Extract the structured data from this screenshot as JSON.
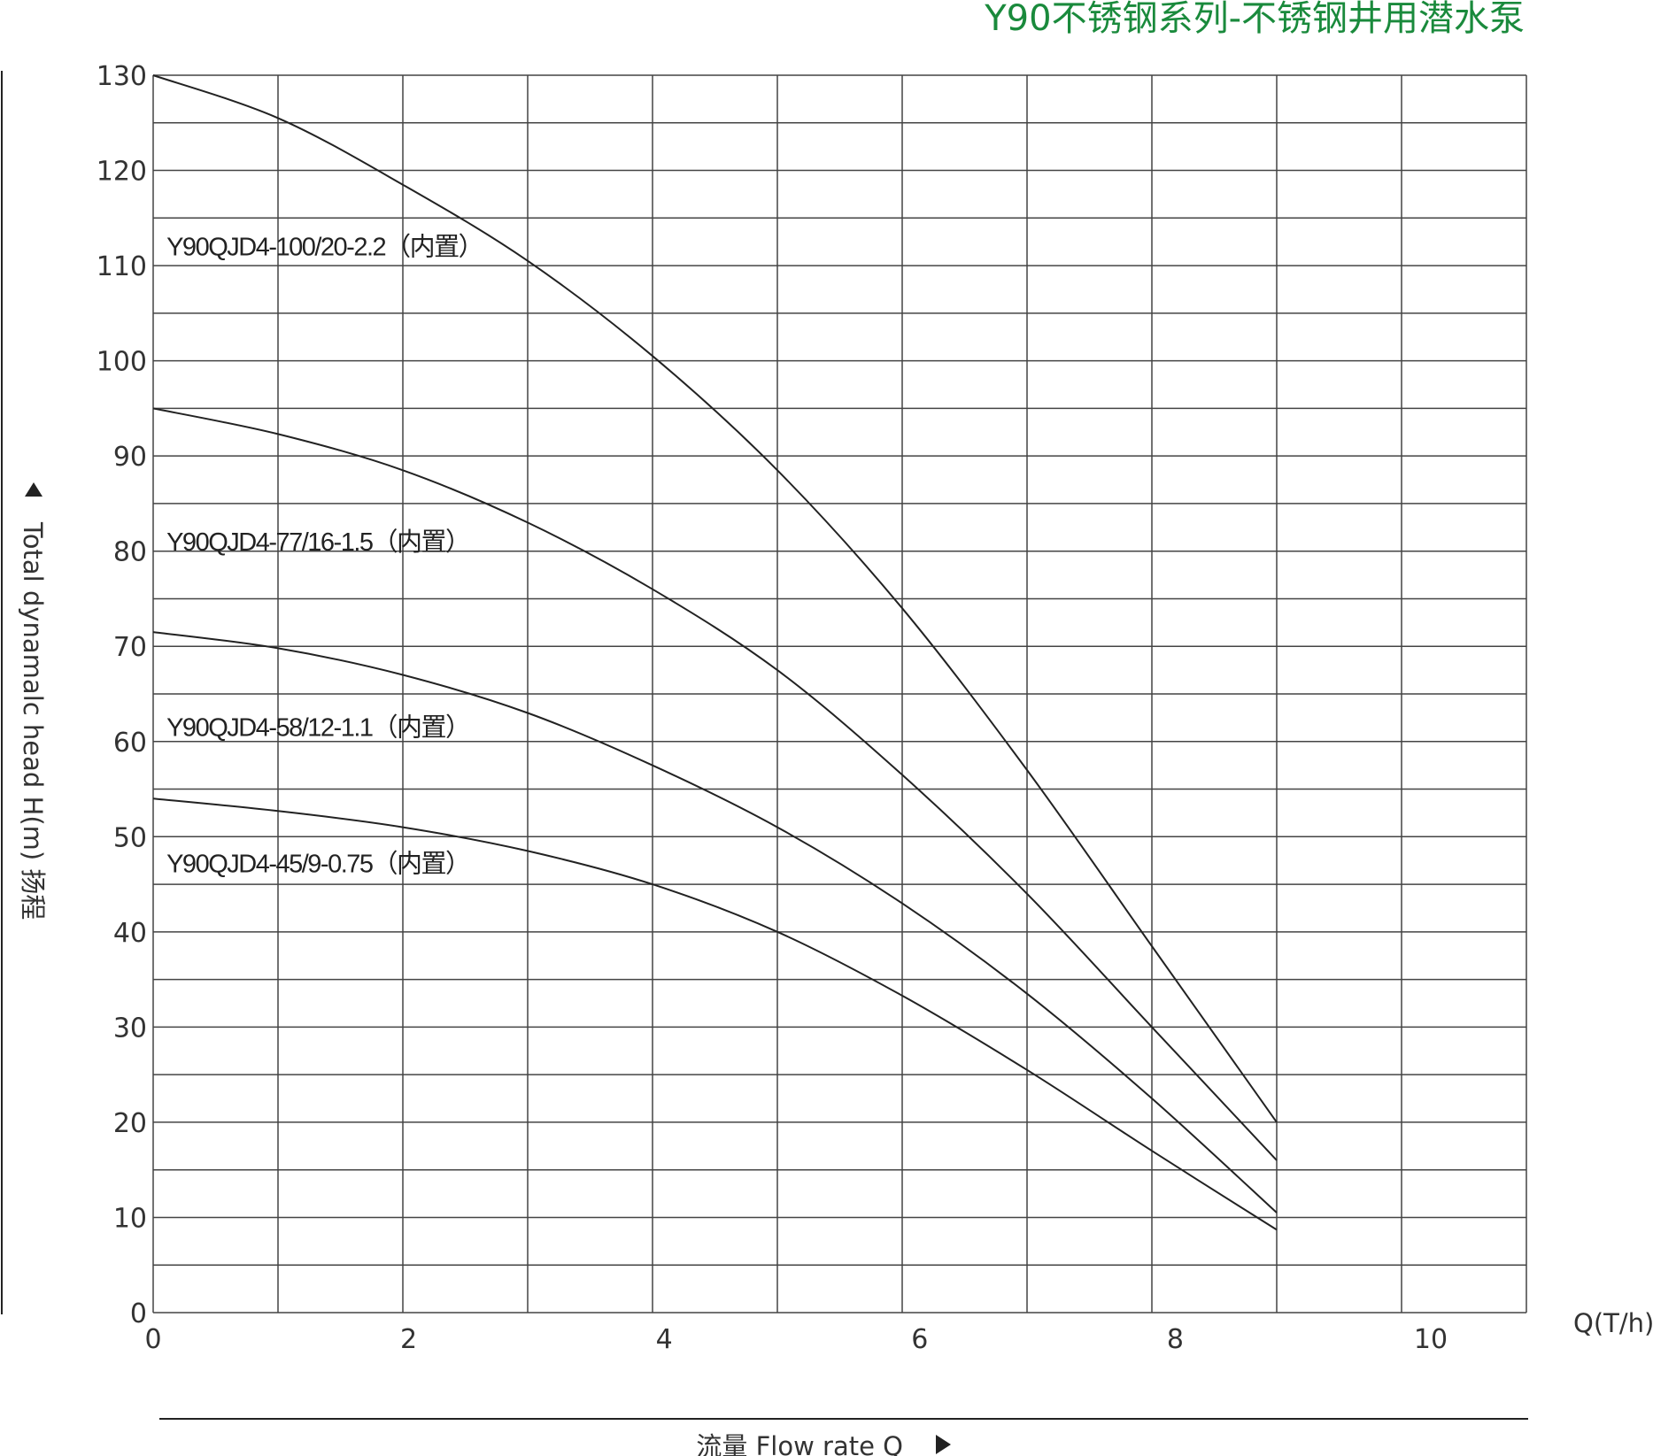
{
  "chart_data": {
    "type": "line",
    "title": "Y90不锈钢系列-不锈钢井用潜水泵",
    "title_color": "#1a8a3c",
    "xlabel": "流量  Flow rate Q",
    "xunit": "Q(T/h)",
    "ylabel": "Total dynamalc head H(m) 扬程",
    "xlim": [
      0,
      11
    ],
    "ylim": [
      0,
      130
    ],
    "x_ticks": [
      0,
      2,
      4,
      6,
      8,
      10
    ],
    "y_ticks": [
      0,
      10,
      20,
      30,
      40,
      50,
      60,
      70,
      80,
      90,
      100,
      110,
      120,
      130
    ],
    "x_grid_step": 1,
    "y_grid_step": 5,
    "grid": true,
    "line_color": "#222222",
    "grid_color": "#444444",
    "series": [
      {
        "name": "Y90QJD4-100/20-2.2（内置）",
        "label_at": [
          0.1,
          112
        ],
        "points": [
          [
            0,
            130
          ],
          [
            1,
            125.5
          ],
          [
            2,
            118.5
          ],
          [
            3,
            110.5
          ],
          [
            4,
            100.5
          ],
          [
            5,
            88.5
          ],
          [
            6,
            74
          ],
          [
            7,
            57
          ],
          [
            8,
            38.5
          ],
          [
            9,
            20
          ]
        ]
      },
      {
        "name": "Y90QJD4-77/16-1.5（内置）",
        "label_at": [
          0.1,
          81
        ],
        "points": [
          [
            0,
            95
          ],
          [
            1,
            92.3
          ],
          [
            2,
            88.5
          ],
          [
            3,
            83
          ],
          [
            4,
            76
          ],
          [
            5,
            67.5
          ],
          [
            6,
            56.5
          ],
          [
            7,
            44
          ],
          [
            8,
            30
          ],
          [
            9,
            16
          ]
        ]
      },
      {
        "name": "Y90QJD4-58/12-1.1（内置）",
        "label_at": [
          0.1,
          61.5
        ],
        "points": [
          [
            0,
            71.5
          ],
          [
            1,
            69.8
          ],
          [
            2,
            67
          ],
          [
            3,
            63
          ],
          [
            4,
            57.5
          ],
          [
            5,
            51
          ],
          [
            6,
            43
          ],
          [
            7,
            33.5
          ],
          [
            8,
            22.5
          ],
          [
            9,
            10.5
          ]
        ]
      },
      {
        "name": "Y90QJD4-45/9-0.75（内置）",
        "label_at": [
          0.1,
          47.2
        ],
        "points": [
          [
            0,
            54
          ],
          [
            1,
            52.7
          ],
          [
            2,
            51
          ],
          [
            3,
            48.5
          ],
          [
            4,
            45
          ],
          [
            5,
            40
          ],
          [
            6,
            33.3
          ],
          [
            7,
            25.5
          ],
          [
            8,
            17
          ],
          [
            9,
            8.7
          ]
        ]
      }
    ]
  }
}
